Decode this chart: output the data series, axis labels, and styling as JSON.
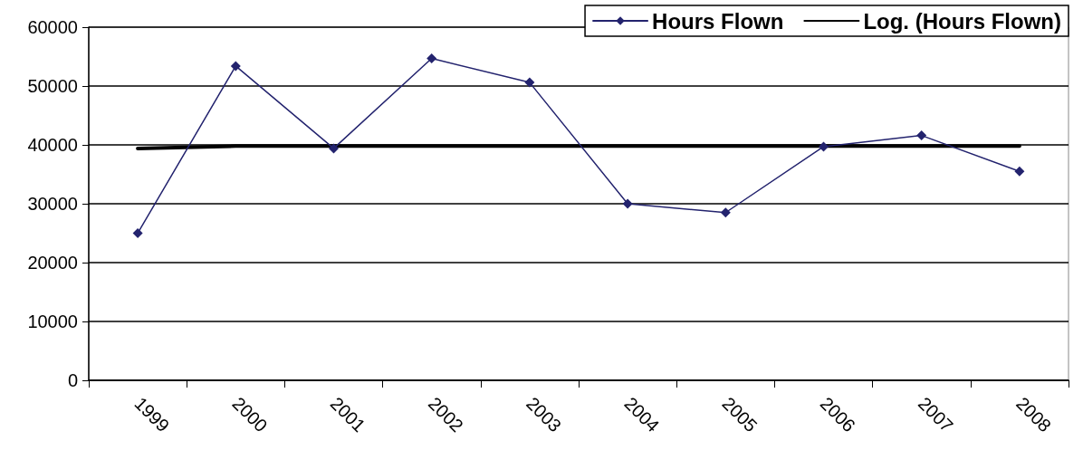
{
  "chart_data": {
    "type": "line",
    "categories": [
      "1999",
      "2000",
      "2001",
      "2002",
      "2003",
      "2004",
      "2005",
      "2006",
      "2007",
      "2008"
    ],
    "series": [
      {
        "name": "Hours Flown",
        "color": "#23236e",
        "values": [
          25000,
          53400,
          39400,
          54700,
          50600,
          30000,
          28500,
          39700,
          41600,
          35500
        ],
        "marker": "diamond",
        "line_style": "solid"
      },
      {
        "name": "Log. (Hours Flown)",
        "color": "#000000",
        "values": [
          39400,
          39800,
          39800,
          39800,
          39800,
          39800,
          39800,
          39800,
          39800,
          39800
        ],
        "marker": "none",
        "line_style": "solid"
      }
    ],
    "ylim": [
      0,
      60000
    ],
    "yticks": [
      0,
      10000,
      20000,
      30000,
      40000,
      50000,
      60000
    ],
    "grid": "y",
    "legend": "top right"
  }
}
